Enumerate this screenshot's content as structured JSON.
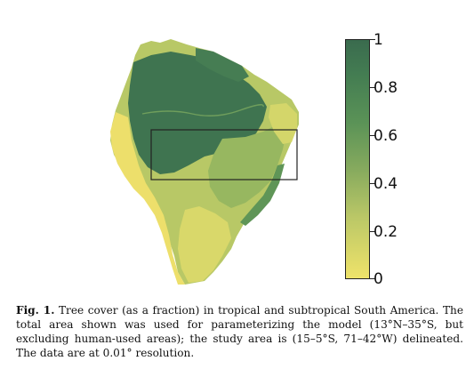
{
  "colorbar": {
    "ticks": [
      "1",
      "0.8",
      "0.6",
      "0.4",
      "0.2",
      "0"
    ],
    "color_top": "#3a6b4e",
    "color_bottom": "#efe36a"
  },
  "map": {
    "region": "tropical and subtropical South America",
    "study_area_box": "15–5°S, 71–42°W",
    "colors": {
      "forest_dense": "#3f7450",
      "forest_mid": "#6f9e5c",
      "savanna": "#a9c064",
      "open": "#e9df6e",
      "box": "#222222"
    }
  },
  "caption": {
    "label": "Fig. 1.",
    "text": "Tree cover (as a fraction) in tropical and subtropical South America. The total area shown was used for parameterizing the model (13°N–35°S, but excluding human-used areas); the study area is (15–5°S, 71–42°W) delineated. The data are at 0.01° resolution."
  }
}
